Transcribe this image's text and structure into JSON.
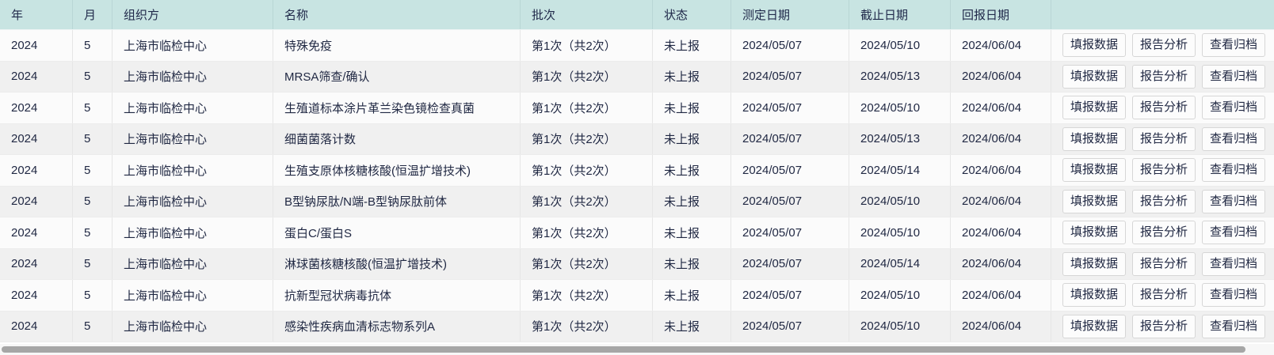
{
  "table": {
    "columns": [
      {
        "label": "年"
      },
      {
        "label": "月"
      },
      {
        "label": "组织方"
      },
      {
        "label": "名称"
      },
      {
        "label": "批次"
      },
      {
        "label": "状态"
      },
      {
        "label": "测定日期"
      },
      {
        "label": "截止日期"
      },
      {
        "label": "回报日期"
      },
      {
        "label": ""
      }
    ],
    "rows": [
      {
        "year": "2024",
        "month": "5",
        "org": "上海市临检中心",
        "name": "特殊免疫",
        "batch": "第1次（共2次）",
        "status": "未上报",
        "test_date": "2024/05/07",
        "deadline": "2024/05/10",
        "report_date": "2024/06/04"
      },
      {
        "year": "2024",
        "month": "5",
        "org": "上海市临检中心",
        "name": "MRSA筛查/确认",
        "batch": "第1次（共2次）",
        "status": "未上报",
        "test_date": "2024/05/07",
        "deadline": "2024/05/13",
        "report_date": "2024/06/04"
      },
      {
        "year": "2024",
        "month": "5",
        "org": "上海市临检中心",
        "name": "生殖道标本涂片革兰染色镜检查真菌",
        "batch": "第1次（共2次）",
        "status": "未上报",
        "test_date": "2024/05/07",
        "deadline": "2024/05/10",
        "report_date": "2024/06/04"
      },
      {
        "year": "2024",
        "month": "5",
        "org": "上海市临检中心",
        "name": "细菌菌落计数",
        "batch": "第1次（共2次）",
        "status": "未上报",
        "test_date": "2024/05/07",
        "deadline": "2024/05/13",
        "report_date": "2024/06/04"
      },
      {
        "year": "2024",
        "month": "5",
        "org": "上海市临检中心",
        "name": "生殖支原体核糖核酸(恒温扩增技术)",
        "batch": "第1次（共2次）",
        "status": "未上报",
        "test_date": "2024/05/07",
        "deadline": "2024/05/14",
        "report_date": "2024/06/04"
      },
      {
        "year": "2024",
        "month": "5",
        "org": "上海市临检中心",
        "name": "B型钠尿肽/N端-B型钠尿肽前体",
        "batch": "第1次（共2次）",
        "status": "未上报",
        "test_date": "2024/05/07",
        "deadline": "2024/05/10",
        "report_date": "2024/06/04"
      },
      {
        "year": "2024",
        "month": "5",
        "org": "上海市临检中心",
        "name": "蛋白C/蛋白S",
        "batch": "第1次（共2次）",
        "status": "未上报",
        "test_date": "2024/05/07",
        "deadline": "2024/05/10",
        "report_date": "2024/06/04"
      },
      {
        "year": "2024",
        "month": "5",
        "org": "上海市临检中心",
        "name": "淋球菌核糖核酸(恒温扩增技术)",
        "batch": "第1次（共2次）",
        "status": "未上报",
        "test_date": "2024/05/07",
        "deadline": "2024/05/14",
        "report_date": "2024/06/04"
      },
      {
        "year": "2024",
        "month": "5",
        "org": "上海市临检中心",
        "name": "抗新型冠状病毒抗体",
        "batch": "第1次（共2次）",
        "status": "未上报",
        "test_date": "2024/05/07",
        "deadline": "2024/05/10",
        "report_date": "2024/06/04"
      },
      {
        "year": "2024",
        "month": "5",
        "org": "上海市临检中心",
        "name": "感染性疾病血清标志物系列A",
        "batch": "第1次（共2次）",
        "status": "未上报",
        "test_date": "2024/05/07",
        "deadline": "2024/05/10",
        "report_date": "2024/06/04"
      }
    ],
    "actions": [
      {
        "label": "填报数据"
      },
      {
        "label": "报告分析"
      },
      {
        "label": "查看归档"
      }
    ]
  },
  "colors": {
    "header_bg": "#c8e4e2",
    "row_bg": "#fbfbfb",
    "row_alt_bg": "#f0f0f0",
    "text": "#1f2742",
    "scrollbar_thumb": "#a6a6a6"
  }
}
